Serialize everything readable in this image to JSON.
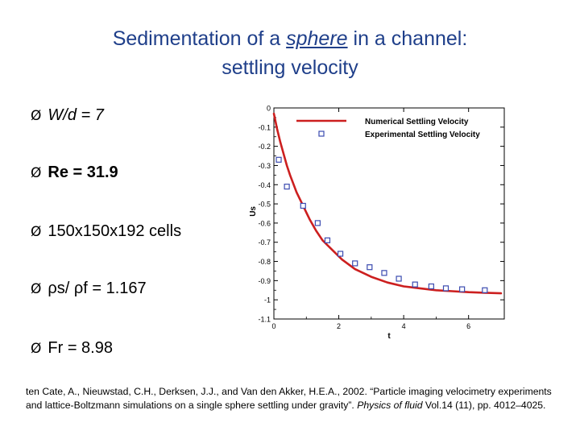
{
  "title": {
    "line1_pre": "Sedimentation of a ",
    "line1_em": "sphere",
    "line1_post": " in a channel:",
    "line2": "settling velocity"
  },
  "bullets": [
    {
      "marker": "Ø",
      "text": "W/d = 7"
    },
    {
      "marker": "Ø",
      "text": "Re = 31.9"
    },
    {
      "marker": "Ø",
      "text": "150x150x192 cells"
    },
    {
      "marker": "Ø",
      "text": "ρs/ ρf = 1.167"
    },
    {
      "marker": "Ø",
      "text": "Fr = 8.98"
    }
  ],
  "citation": {
    "main": "ten Cate, A., Nieuwstad, C.H., Derksen, J.J., and Van den Akker, H.E.A., 2002. “Particle imaging velocimetry experiments and lattice-Boltzmann simulations on a single sphere settling under gravity”. ",
    "journal": "Physics of fluid",
    "rest": " Vol.14 (11), pp. 4012–4025."
  },
  "colors": {
    "title": "#1f3f8a",
    "numerical_line": "#cc1f1f",
    "experimental_marker": "#3b4bb0"
  },
  "chart_data": {
    "type": "line",
    "xlabel": "t",
    "ylabel": "Us",
    "xlim": [
      0,
      7.1
    ],
    "ylim": [
      -1.1,
      0
    ],
    "xticks": [
      0,
      2,
      4,
      6
    ],
    "yticks": [
      0,
      -0.1,
      -0.2,
      -0.3,
      -0.4,
      -0.5,
      -0.6,
      -0.7,
      -0.8,
      -0.9,
      -1,
      -1.1
    ],
    "xtick_labels": [
      "0",
      "2",
      "4",
      "6"
    ],
    "ytick_labels": [
      "0",
      "-0.1",
      "-0.2",
      "-0.3",
      "-0.4",
      "-0.5",
      "-0.6",
      "-0.7",
      "-0.8",
      "-0.9",
      "-1",
      "-1.1"
    ],
    "legend": [
      {
        "label": "Numerical Settling Velocity",
        "kind": "line"
      },
      {
        "label": "Experimental Settling Velocity",
        "kind": "marker"
      }
    ],
    "series": [
      {
        "name": "Numerical Settling Velocity",
        "kind": "line",
        "x": [
          0,
          0.1,
          0.2,
          0.3,
          0.4,
          0.5,
          0.7,
          0.9,
          1.1,
          1.3,
          1.5,
          1.8,
          2.1,
          2.5,
          3.0,
          3.5,
          4.0,
          4.5,
          5.0,
          5.5,
          6.0,
          6.5,
          7.0
        ],
        "y": [
          -0.03,
          -0.11,
          -0.18,
          -0.24,
          -0.3,
          -0.35,
          -0.44,
          -0.51,
          -0.58,
          -0.64,
          -0.69,
          -0.74,
          -0.79,
          -0.84,
          -0.88,
          -0.91,
          -0.93,
          -0.94,
          -0.95,
          -0.955,
          -0.96,
          -0.963,
          -0.966
        ]
      },
      {
        "name": "Experimental Settling Velocity",
        "kind": "scatter",
        "x": [
          0.15,
          0.4,
          0.9,
          1.35,
          1.65,
          2.05,
          2.5,
          2.95,
          3.4,
          3.85,
          4.35,
          4.85,
          5.3,
          5.8,
          6.5
        ],
        "y": [
          -0.27,
          -0.41,
          -0.51,
          -0.6,
          -0.69,
          -0.76,
          -0.81,
          -0.83,
          -0.86,
          -0.89,
          -0.92,
          -0.93,
          -0.94,
          -0.945,
          -0.95
        ]
      }
    ]
  }
}
